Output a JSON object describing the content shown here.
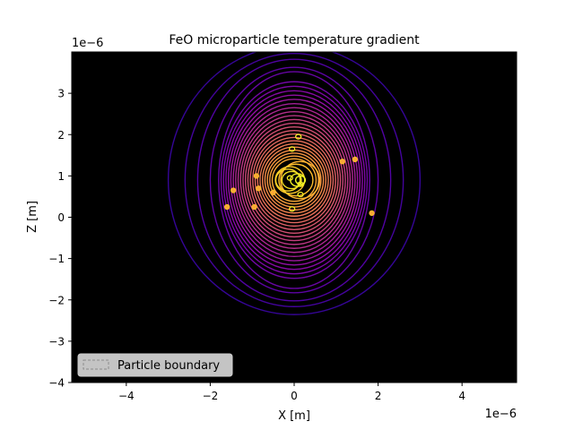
{
  "chart_data": {
    "type": "contour",
    "title": "FeO microparticle temperature gradient",
    "xlabel": "X [m]",
    "ylabel": "Z [m]",
    "x_offset_label": "1e−6",
    "y_offset_label": "1e−6",
    "xlim": [
      -5.3,
      5.3
    ],
    "ylim": [
      -4.0,
      4.0
    ],
    "units_scale": 1e-06,
    "xticks": [
      -4,
      -2,
      0,
      2,
      4
    ],
    "xtick_labels": [
      "−4",
      "−2",
      "0",
      "2",
      "4"
    ],
    "yticks": [
      -4,
      -3,
      -2,
      -1,
      0,
      1,
      2,
      3
    ],
    "ytick_labels": [
      "−4",
      "−3",
      "−2",
      "−1",
      "0",
      "1",
      "2",
      "3"
    ],
    "background_color": "#000000",
    "colormap": "plasma",
    "grid": false,
    "hot_spot_center": [
      0.0,
      0.9
    ],
    "level_count": 34,
    "outer_level_half_widths": [
      3.0,
      2.6,
      2.3,
      2.0,
      1.8
    ],
    "hot_spots": [
      {
        "x": 0.1,
        "y": 1.95
      },
      {
        "x": -0.05,
        "y": 1.65
      },
      {
        "x": -0.1,
        "y": 0.95
      },
      {
        "x": 0.15,
        "y": 0.8
      },
      {
        "x": 0.15,
        "y": 0.55
      },
      {
        "x": -0.05,
        "y": 0.2
      },
      {
        "x": -0.5,
        "y": 0.6
      },
      {
        "x": -0.85,
        "y": 0.7
      },
      {
        "x": -1.45,
        "y": 0.65
      },
      {
        "x": -0.95,
        "y": 0.25
      },
      {
        "x": -1.6,
        "y": 0.25
      },
      {
        "x": 1.15,
        "y": 1.35
      },
      {
        "x": 1.45,
        "y": 1.4
      },
      {
        "x": 1.85,
        "y": 0.1
      },
      {
        "x": -0.9,
        "y": 1.0
      }
    ],
    "legend": {
      "location": "lower-left",
      "entries": [
        "Particle boundary"
      ]
    }
  }
}
